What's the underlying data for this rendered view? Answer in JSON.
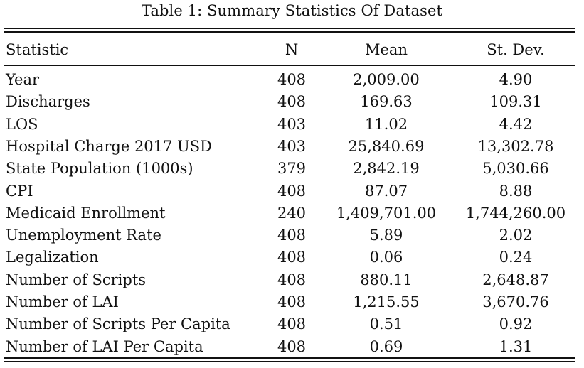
{
  "caption": "Table 1: Summary Statistics Of Dataset",
  "columns": [
    "Statistic",
    "N",
    "Mean",
    "St. Dev."
  ],
  "rows": [
    {
      "statistic": "Year",
      "n": "408",
      "mean": "2,009.00",
      "sd": "4.90"
    },
    {
      "statistic": "Discharges",
      "n": "408",
      "mean": "169.63",
      "sd": "109.31"
    },
    {
      "statistic": "LOS",
      "n": "403",
      "mean": "11.02",
      "sd": "4.42"
    },
    {
      "statistic": "Hospital Charge 2017 USD",
      "n": "403",
      "mean": "25,840.69",
      "sd": "13,302.78"
    },
    {
      "statistic": "State Population (1000s)",
      "n": "379",
      "mean": "2,842.19",
      "sd": "5,030.66"
    },
    {
      "statistic": "CPI",
      "n": "408",
      "mean": "87.07",
      "sd": "8.88"
    },
    {
      "statistic": "Medicaid Enrollment",
      "n": "240",
      "mean": "1,409,701.00",
      "sd": "1,744,260.00"
    },
    {
      "statistic": "Unemployment Rate",
      "n": "408",
      "mean": "5.89",
      "sd": "2.02"
    },
    {
      "statistic": "Legalization",
      "n": "408",
      "mean": "0.06",
      "sd": "0.24"
    },
    {
      "statistic": "Number of Scripts",
      "n": "408",
      "mean": "880.11",
      "sd": "2,648.87"
    },
    {
      "statistic": "Number of LAI",
      "n": "408",
      "mean": "1,215.55",
      "sd": "3,670.76"
    },
    {
      "statistic": "Number of Scripts Per Capita",
      "n": "408",
      "mean": "0.51",
      "sd": "0.92"
    },
    {
      "statistic": "Number of LAI Per Capita",
      "n": "408",
      "mean": "0.69",
      "sd": "1.31"
    }
  ]
}
